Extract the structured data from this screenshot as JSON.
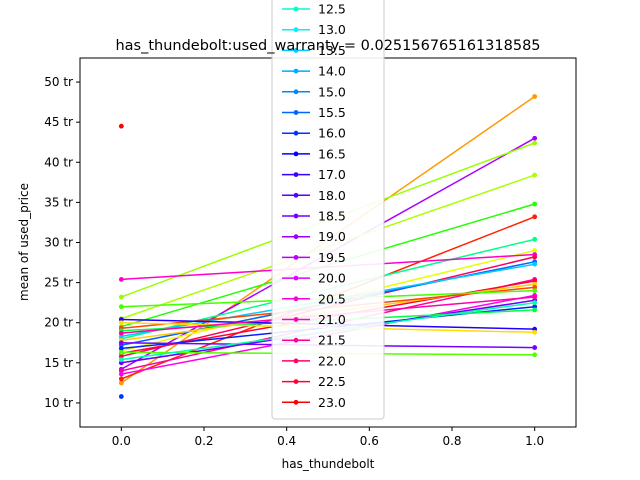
{
  "chart_data": {
    "type": "line",
    "title": "has_thundebolt:used_warranty = 0.025156765161318585",
    "xlabel": "has_thundebolt",
    "ylabel": "mean of used_price",
    "xlim": [
      -0.1,
      1.1
    ],
    "ylim": [
      7,
      53
    ],
    "x_ticks": [
      "0.0",
      "0.2",
      "0.4",
      "0.6",
      "0.8",
      "1.0"
    ],
    "y_ticks": [
      "10 tr",
      "15 tr",
      "20 tr",
      "25 tr",
      "30 tr",
      "35 tr",
      "40 tr",
      "45 tr",
      "50 tr"
    ],
    "grid": false,
    "legend_placement": "top-center",
    "legend_entries_visible": [
      "12.5",
      "13.0",
      "13.5",
      "14.0",
      "15.0",
      "15.5",
      "16.0",
      "16.5",
      "17.0",
      "18.0",
      "18.5",
      "19.0",
      "19.5",
      "20.0",
      "20.5",
      "21.0",
      "21.5",
      "22.0",
      "22.5",
      "23.0"
    ],
    "series": [
      {
        "color": "#ff9900",
        "x": [
          0,
          1
        ],
        "y": [
          12.5,
          48.2
        ]
      },
      {
        "color": "#aa00ff",
        "x": [
          0,
          1
        ],
        "y": [
          14.2,
          43.0
        ]
      },
      {
        "color": "#99ff00",
        "x": [
          0,
          1
        ],
        "y": [
          23.2,
          42.4
        ]
      },
      {
        "color": "#aaff00",
        "x": [
          0,
          1
        ],
        "y": [
          20.5,
          38.4
        ]
      },
      {
        "color": "#22ff00",
        "x": [
          0,
          1
        ],
        "y": [
          19.5,
          34.8
        ]
      },
      {
        "color": "#ff2200",
        "x": [
          0,
          1
        ],
        "y": [
          13.0,
          33.2
        ]
      },
      {
        "color": "#00ff88",
        "x": [
          0,
          1
        ],
        "y": [
          18.0,
          30.4
        ]
      },
      {
        "color": "#e6ff00",
        "x": [
          0,
          1
        ],
        "y": [
          16.5,
          29.0
        ]
      },
      {
        "color": "#ff00cc",
        "x": [
          0,
          1
        ],
        "y": [
          25.4,
          28.5
        ]
      },
      {
        "color": "#ff0055",
        "x": [
          0,
          1
        ],
        "y": [
          15.8,
          28.2
        ]
      },
      {
        "color": "#0066ff",
        "x": [
          0,
          1
        ],
        "y": [
          17.2,
          27.6
        ]
      },
      {
        "color": "#00ccff",
        "x": [
          0,
          1
        ],
        "y": [
          18.3,
          27.3
        ]
      },
      {
        "color": "#ff0099",
        "x": [
          0,
          1
        ],
        "y": [
          14.0,
          25.4
        ]
      },
      {
        "color": "#ff0033",
        "x": [
          0,
          1
        ],
        "y": [
          16.2,
          25.2
        ]
      },
      {
        "color": "#ffcc00",
        "x": [
          0,
          1
        ],
        "y": [
          17.8,
          24.8
        ]
      },
      {
        "color": "#ff4400",
        "x": [
          0,
          1
        ],
        "y": [
          19.3,
          24.4
        ]
      },
      {
        "color": "#44ff00",
        "x": [
          0,
          1
        ],
        "y": [
          22.0,
          24.0
        ]
      },
      {
        "color": "#ff00ee",
        "x": [
          0,
          1
        ],
        "y": [
          13.6,
          23.4
        ]
      },
      {
        "color": "#6600ff",
        "x": [
          0,
          1
        ],
        "y": [
          15.0,
          22.8
        ]
      },
      {
        "color": "#0022ff",
        "x": [
          0,
          1
        ],
        "y": [
          16.8,
          22.0
        ]
      },
      {
        "color": "#00ff44",
        "x": [
          0,
          1
        ],
        "y": [
          19.0,
          21.6
        ]
      },
      {
        "color": "#2200ff",
        "x": [
          0,
          1
        ],
        "y": [
          20.4,
          19.2
        ]
      },
      {
        "color": "#ffdd00",
        "x": [
          0,
          1
        ],
        "y": [
          20.0,
          18.8
        ]
      },
      {
        "color": "#7700ff",
        "x": [
          0,
          1
        ],
        "y": [
          17.5,
          16.9
        ]
      },
      {
        "color": "#55ff00",
        "x": [
          0,
          1
        ],
        "y": [
          16.3,
          16.0
        ]
      },
      {
        "color": "#00ffaa",
        "x": [
          0,
          1
        ],
        "y": [
          15.4,
          22.5
        ]
      },
      {
        "color": "#ff00aa",
        "x": [
          0,
          1
        ],
        "y": [
          18.7,
          23.2
        ]
      }
    ],
    "points": [
      {
        "color": "#ff0000",
        "x": 0,
        "y": 44.5
      },
      {
        "color": "#0033ff",
        "x": 0,
        "y": 10.8
      }
    ],
    "legend": [
      {
        "label": "12.5",
        "color": "#00ffcc"
      },
      {
        "label": "13.0",
        "color": "#00eeff"
      },
      {
        "label": "13.5",
        "color": "#00ccff"
      },
      {
        "label": "14.0",
        "color": "#00aaff"
      },
      {
        "label": "15.0",
        "color": "#0088ff"
      },
      {
        "label": "15.5",
        "color": "#0066ff"
      },
      {
        "label": "16.0",
        "color": "#0033ff"
      },
      {
        "label": "16.5",
        "color": "#0000ff"
      },
      {
        "label": "17.0",
        "color": "#3300ff"
      },
      {
        "label": "18.0",
        "color": "#5500ff"
      },
      {
        "label": "18.5",
        "color": "#7700ff"
      },
      {
        "label": "19.0",
        "color": "#9900ff"
      },
      {
        "label": "19.5",
        "color": "#bb00ff"
      },
      {
        "label": "20.0",
        "color": "#dd00ff"
      },
      {
        "label": "20.5",
        "color": "#ff00dd"
      },
      {
        "label": "21.0",
        "color": "#ff00bb"
      },
      {
        "label": "21.5",
        "color": "#ff0099"
      },
      {
        "label": "22.0",
        "color": "#ff0066"
      },
      {
        "label": "22.5",
        "color": "#ff0033"
      },
      {
        "label": "23.0",
        "color": "#ff0000"
      }
    ]
  }
}
